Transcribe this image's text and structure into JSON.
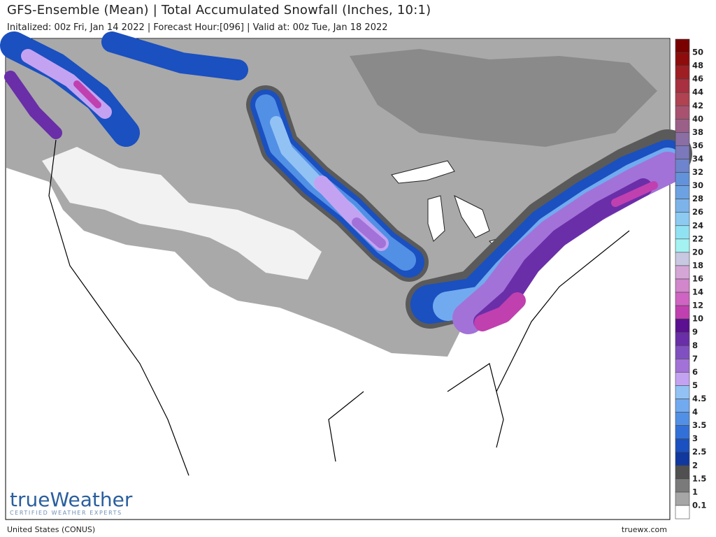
{
  "header": {
    "title": "GFS-Ensemble (Mean) | Total Accumulated Snowfall (Inches, 10:1)",
    "subtitle": "Initalized: 00z Fri, Jan 14 2022 | Forecast Hour:[096] | Valid at: 00z Tue, Jan 18 2022"
  },
  "legend": {
    "labels": [
      "50",
      "48",
      "46",
      "44",
      "42",
      "40",
      "38",
      "36",
      "34",
      "32",
      "30",
      "28",
      "26",
      "24",
      "22",
      "20",
      "18",
      "16",
      "14",
      "12",
      "10",
      "9",
      "8",
      "7",
      "6",
      "5",
      "4.5",
      "4",
      "3.5",
      "3",
      "2.5",
      "2",
      "1.5",
      "1",
      "0.1"
    ],
    "colors": [
      "#7a0000",
      "#8e0c0c",
      "#9e1e24",
      "#a83040",
      "#b04252",
      "#a85270",
      "#9a6088",
      "#8a6ea4",
      "#7c78bc",
      "#6e84cc",
      "#6292da",
      "#6ca2e2",
      "#7cb4ea",
      "#8ccaf2",
      "#90e2f2",
      "#a4f2f2",
      "#c8c8e2",
      "#d4a6d6",
      "#d286cc",
      "#d064c2",
      "#c040b0",
      "#5a1090",
      "#6a2ea8",
      "#8050c0",
      "#a272d8",
      "#c4a2f2",
      "#92c2f4",
      "#72aaf0",
      "#5290e6",
      "#3270d8",
      "#1a50c0",
      "#10389e",
      "#505050",
      "#7a7a7a",
      "#a6a6a6",
      "#ffffff"
    ]
  },
  "logo": {
    "name": "trueWeather",
    "tagline": "CERTIFIED WEATHER EXPERTS"
  },
  "footer": {
    "region": "United States (CONUS)",
    "site": "truewx.com"
  }
}
